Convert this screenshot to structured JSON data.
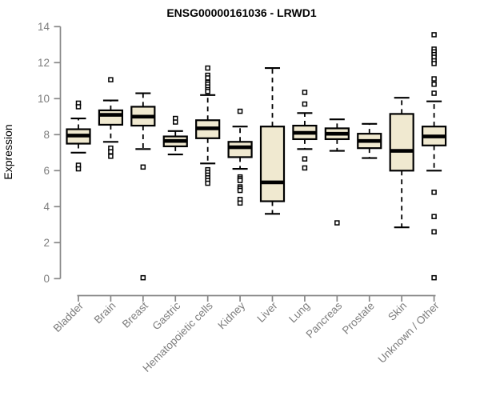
{
  "title": "ENSG00000161036 - LRWD1",
  "colors": {
    "box_fill": "#F0E9D0",
    "box_stroke": "#000000",
    "median": "#000000",
    "whisker": "#000000",
    "outlier_fill": "#ffffff",
    "axis": "#878787",
    "tick_label": "#7d7d7d",
    "y_axis_title": "#8c8c8c",
    "title": "#000000",
    "background": "#ffffff"
  },
  "chart_data": {
    "type": "boxplot",
    "title": "ENSG00000161036 - LRWD1",
    "xlabel": "",
    "ylabel": "Expression",
    "ylim": [
      0,
      14
    ],
    "yticks": [
      0,
      2,
      4,
      6,
      8,
      10,
      12,
      14
    ],
    "grid": false,
    "legend": "none",
    "x_tick_rotation_deg": 45,
    "categories": [
      "Bladder",
      "Brain",
      "Breast",
      "Gastric",
      "Hematopoietic cells",
      "Kidney",
      "Liver",
      "Lung",
      "Pancreas",
      "Prostate",
      "Skin",
      "Unknown / Other"
    ],
    "boxes": [
      {
        "category": "Bladder",
        "whisker_low": 7.0,
        "q1": 7.5,
        "median": 7.95,
        "q3": 8.3,
        "whisker_high": 8.9,
        "outliers": [
          9.75,
          9.55,
          6.3,
          6.1
        ]
      },
      {
        "category": "Brain",
        "whisker_low": 7.6,
        "q1": 8.55,
        "median": 9.1,
        "q3": 9.35,
        "whisker_high": 9.9,
        "outliers": [
          11.05,
          7.25,
          7.05,
          6.8
        ]
      },
      {
        "category": "Breast",
        "whisker_low": 7.2,
        "q1": 8.5,
        "median": 9.0,
        "q3": 9.55,
        "whisker_high": 10.3,
        "outliers": [
          6.2,
          0.05
        ]
      },
      {
        "category": "Gastric",
        "whisker_low": 6.9,
        "q1": 7.35,
        "median": 7.65,
        "q3": 7.9,
        "whisker_high": 8.2,
        "outliers": [
          8.9,
          8.7
        ]
      },
      {
        "category": "Hematopoietic cells",
        "whisker_low": 6.4,
        "q1": 7.8,
        "median": 8.35,
        "q3": 8.8,
        "whisker_high": 10.2,
        "outliers": [
          11.7,
          11.3,
          11.15,
          10.9,
          10.8,
          10.65,
          10.5,
          10.4,
          6.05,
          5.9,
          5.75,
          5.6,
          5.45,
          5.3
        ]
      },
      {
        "category": "Kidney",
        "whisker_low": 6.1,
        "q1": 6.75,
        "median": 7.3,
        "q3": 7.6,
        "whisker_high": 8.45,
        "outliers": [
          9.3,
          5.65,
          5.55,
          5.45,
          5.1,
          5.0,
          4.9,
          4.4,
          4.2
        ]
      },
      {
        "category": "Liver",
        "whisker_low": 3.6,
        "q1": 4.3,
        "median": 5.35,
        "q3": 8.45,
        "whisker_high": 11.7,
        "outliers": []
      },
      {
        "category": "Lung",
        "whisker_low": 7.2,
        "q1": 7.75,
        "median": 8.1,
        "q3": 8.5,
        "whisker_high": 9.2,
        "outliers": [
          10.35,
          9.7,
          6.65,
          6.15
        ]
      },
      {
        "category": "Pancreas",
        "whisker_low": 7.1,
        "q1": 7.75,
        "median": 8.05,
        "q3": 8.35,
        "whisker_high": 8.85,
        "outliers": [
          3.1
        ]
      },
      {
        "category": "Prostate",
        "whisker_low": 6.7,
        "q1": 7.25,
        "median": 7.65,
        "q3": 8.05,
        "whisker_high": 8.6,
        "outliers": []
      },
      {
        "category": "Skin",
        "whisker_low": 2.85,
        "q1": 6.0,
        "median": 7.1,
        "q3": 9.15,
        "whisker_high": 10.05,
        "outliers": []
      },
      {
        "category": "Unknown / Other",
        "whisker_low": 6.0,
        "q1": 7.4,
        "median": 7.9,
        "q3": 8.45,
        "whisker_high": 9.85,
        "outliers": [
          13.55,
          12.75,
          12.6,
          12.45,
          12.3,
          12.1,
          11.95,
          11.1,
          10.8,
          10.3,
          4.8,
          3.45,
          2.6,
          0.05
        ]
      }
    ]
  }
}
